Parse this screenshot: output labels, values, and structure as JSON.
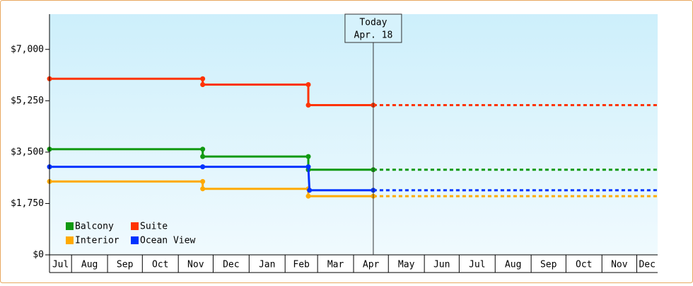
{
  "chart_data": {
    "type": "line",
    "xticks": [
      {
        "value": 0,
        "label": "Jul"
      },
      {
        "value": 19,
        "label": "Aug"
      },
      {
        "value": 50,
        "label": "Sep"
      },
      {
        "value": 80,
        "label": "Oct"
      },
      {
        "value": 111,
        "label": "Nov"
      },
      {
        "value": 141,
        "label": "Dec"
      },
      {
        "value": 172,
        "label": "Jan"
      },
      {
        "value": 203,
        "label": "Feb"
      },
      {
        "value": 231,
        "label": "Mar"
      },
      {
        "value": 262,
        "label": "Apr"
      },
      {
        "value": 292,
        "label": "May"
      },
      {
        "value": 323,
        "label": "Jun"
      },
      {
        "value": 353,
        "label": "Jul"
      },
      {
        "value": 384,
        "label": "Aug"
      },
      {
        "value": 415,
        "label": "Sep"
      },
      {
        "value": 445,
        "label": "Oct"
      },
      {
        "value": 476,
        "label": "Nov"
      },
      {
        "value": 506,
        "label": "Dec"
      }
    ],
    "xlim": [
      0,
      524
    ],
    "ylim": [
      0,
      8200
    ],
    "yticks": [
      {
        "value": 0,
        "label": "$0"
      },
      {
        "value": 1750,
        "label": "$1,750"
      },
      {
        "value": 3500,
        "label": "$3,500"
      },
      {
        "value": 5250,
        "label": "$5,250"
      },
      {
        "value": 7000,
        "label": "$7,000"
      }
    ],
    "today": {
      "x": 279,
      "label": "Today",
      "date": "Apr. 18"
    },
    "series": [
      {
        "name": "Balcony",
        "color": "#119911",
        "x": [
          0,
          132,
          132,
          223,
          223,
          279
        ],
        "values": [
          3600,
          3600,
          3350,
          3350,
          2900,
          2900
        ]
      },
      {
        "name": "Suite",
        "color": "#ff3300",
        "x": [
          0,
          132,
          132,
          223,
          223,
          279
        ],
        "values": [
          6000,
          6000,
          5800,
          5800,
          5100,
          5100
        ]
      },
      {
        "name": "Interior",
        "color": "#ffaa00",
        "x": [
          0,
          132,
          132,
          223,
          223,
          279
        ],
        "values": [
          2500,
          2500,
          2250,
          2250,
          2000,
          2000
        ]
      },
      {
        "name": "Ocean View",
        "color": "#0033ff",
        "x": [
          0,
          132,
          223,
          224,
          279
        ],
        "values": [
          3000,
          3000,
          3000,
          2200,
          2200
        ]
      }
    ]
  }
}
